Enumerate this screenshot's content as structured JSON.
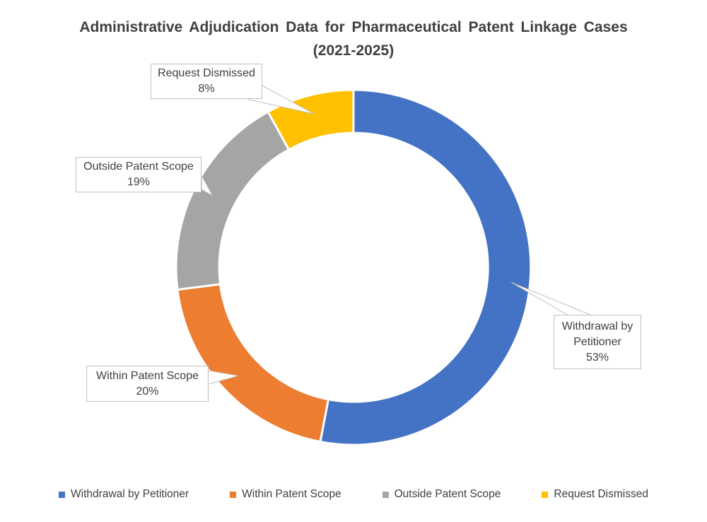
{
  "title": {
    "line1": "Administrative Adjudication Data for Pharmaceutical Patent Linkage Cases",
    "line2": "(2021-2025)"
  },
  "chart_data": {
    "type": "pie",
    "subtype": "donut",
    "title": "Administrative Adjudication Data for Pharmaceutical Patent Linkage Cases (2021-2025)",
    "categories": [
      "Withdrawal by Petitioner",
      "Within Patent Scope",
      "Outside Patent Scope",
      "Request Dismissed"
    ],
    "values": [
      53,
      20,
      19,
      8
    ],
    "unit": "percent",
    "colors": [
      "#4472C4",
      "#ED7D31",
      "#A5A5A5",
      "#FFC000"
    ],
    "start_angle_deg": 0,
    "direction": "clockwise",
    "donut_hole_ratio": 0.76,
    "legend_position": "bottom",
    "data_labels": [
      "Withdrawal by Petitioner 53%",
      "Within Patent Scope 20%",
      "Outside Patent Scope 19%",
      "Request Dismissed 8%"
    ]
  },
  "callouts": [
    {
      "label": "Withdrawal by Petitioner",
      "value": "53%"
    },
    {
      "label": "Within Patent Scope",
      "value": "20%"
    },
    {
      "label": "Outside Patent Scope",
      "value": "19%"
    },
    {
      "label": "Request Dismissed",
      "value": "8%"
    }
  ],
  "style": {
    "text_color": "#404040",
    "callout_border_color": "#BFBFBF",
    "background_color": "#FFFFFF"
  }
}
